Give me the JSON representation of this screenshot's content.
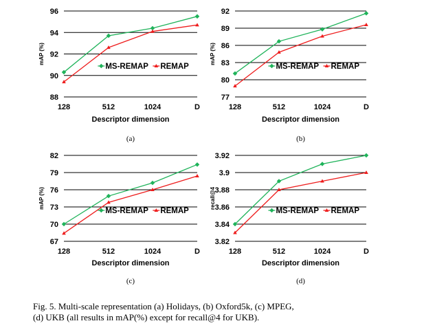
{
  "colors": {
    "ms_remap": "#1fb35a",
    "remap": "#ee1c1c",
    "grid": "#000000"
  },
  "caption": {
    "line1": "Fig. 5.    Multi-scale representation (a) Holidays, (b) Oxford5k, (c) MPEG,",
    "line2": "(d) UKB (all results in mAP(%) except for recall@4 for UKB)."
  },
  "chart_data": [
    {
      "type": "line",
      "panel_label": "(a)",
      "categories": [
        "128",
        "512",
        "1024",
        "D"
      ],
      "xlabel": "Descriptor dimension",
      "ylabel": "mAP (%)",
      "ylim": [
        88,
        96
      ],
      "yticks": [
        "88",
        "90",
        "92",
        "94",
        "96"
      ],
      "grid": true,
      "legend": "inside-right",
      "series": [
        {
          "name": "MS-REMAP",
          "values": [
            90.3,
            93.7,
            94.4,
            95.5
          ]
        },
        {
          "name": "REMAP",
          "values": [
            89.4,
            92.6,
            94.1,
            94.7
          ]
        }
      ]
    },
    {
      "type": "line",
      "panel_label": "(b)",
      "categories": [
        "128",
        "512",
        "1024",
        "D"
      ],
      "xlabel": "Descriptor dimension",
      "ylabel": "mAP (%)",
      "ylim": [
        77,
        92
      ],
      "yticks": [
        "77",
        "80",
        "83",
        "86",
        "89",
        "92"
      ],
      "grid": true,
      "legend": "inside-right",
      "series": [
        {
          "name": "MS-REMAP",
          "values": [
            81.1,
            86.7,
            88.8,
            91.6
          ]
        },
        {
          "name": "REMAP",
          "values": [
            78.9,
            84.8,
            87.6,
            89.6
          ]
        }
      ]
    },
    {
      "type": "line",
      "panel_label": "(c)",
      "categories": [
        "128",
        "512",
        "1024",
        "D"
      ],
      "xlabel": "Descriptor dimension",
      "ylabel": "mAP (%)",
      "ylim": [
        67,
        82
      ],
      "yticks": [
        "67",
        "70",
        "73",
        "76",
        "79",
        "82"
      ],
      "grid": true,
      "legend": "inside-right",
      "series": [
        {
          "name": "MS-REMAP",
          "values": [
            70.0,
            74.9,
            77.2,
            80.4
          ]
        },
        {
          "name": "REMAP",
          "values": [
            68.4,
            73.8,
            76.0,
            78.4
          ]
        }
      ]
    },
    {
      "type": "line",
      "panel_label": "(d)",
      "categories": [
        "128",
        "512",
        "1024",
        "D"
      ],
      "xlabel": "Descriptor dimension",
      "ylabel": "recall@4",
      "ylim": [
        3.82,
        3.92
      ],
      "yticks": [
        "3.82",
        "3.84",
        "3.86",
        "3.88",
        "3.9",
        "3.92"
      ],
      "grid": true,
      "legend": "inside-right",
      "series": [
        {
          "name": "MS-REMAP",
          "values": [
            3.84,
            3.89,
            3.91,
            3.92
          ]
        },
        {
          "name": "REMAP",
          "values": [
            3.83,
            3.88,
            3.89,
            3.9
          ]
        }
      ]
    }
  ]
}
